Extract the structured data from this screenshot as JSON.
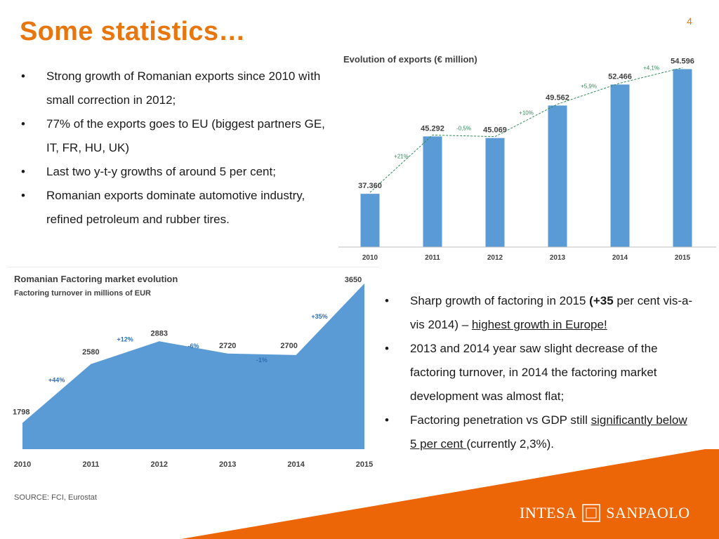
{
  "page_number": "4",
  "title": "Some statistics…",
  "left_bullets": [
    {
      "symbol": "•",
      "text": "Strong growth of Romanian exports since 2010 wìth small correction in 2012;"
    },
    {
      "symbol": "•",
      "text": "77% of the exports goes to EU (biggest partners GE, IT, FR, HU, UK)"
    },
    {
      "symbol": "•",
      "text": "Last two y-t-y growths of around 5 per cent;"
    },
    {
      "symbol": "•",
      "text": "Romanian exports dominate automotive industry, refined petroleum and rubber tires."
    }
  ],
  "right_bullets": {
    "b1": {
      "symbol": "•",
      "pre": "Sharp growth of factoring in 2015 ",
      "bold": "(+35",
      "mid": " per cent vis-a-vis 2014) – ",
      "underlined": "highest growth in Europe!"
    },
    "b2": {
      "symbol": "•",
      "text": "2013 and 2014 year saw slight decrease of the factoring turnover, in 2014 the factoring market development was almost flat;"
    },
    "b3": {
      "symbol": "•",
      "pre": "Factoring penetration vs GDP still ",
      "underlined": "significantly below 5 per cent ",
      "post": "(currently 2,3%)."
    }
  },
  "source": "SOURCE: FCI, Eurostat",
  "logo": {
    "left": "INTESA",
    "right": "SANPAOLO"
  },
  "colors": {
    "accent": "#e8760f",
    "bar": "#5b9bd5",
    "trend": "#2e8b57",
    "area": "#5b9bd5"
  },
  "chart_data": [
    {
      "type": "bar",
      "title": "Evolution of exports (€ million)",
      "categories": [
        "2010",
        "2011",
        "2012",
        "2013",
        "2014",
        "2015"
      ],
      "values": [
        37360,
        45292,
        45069,
        49562,
        52466,
        54596
      ],
      "value_labels": [
        "37.360",
        "45.292",
        "45.069",
        "49.562",
        "52.466",
        "54.596"
      ],
      "growth_labels": [
        "+21%",
        "-0,5%",
        "+10%",
        "+5,9%",
        "+4,1%"
      ],
      "ylim": [
        30000,
        56000
      ],
      "trend_line": true,
      "grid": false
    },
    {
      "type": "area",
      "title": "Romanian Factoring market evolution",
      "subtitle": "Factoring turnover in millions of EUR",
      "categories": [
        "2010",
        "2011",
        "2012",
        "2013",
        "2014",
        "2015"
      ],
      "values": [
        1798,
        2580,
        2883,
        2720,
        2700,
        3650
      ],
      "value_labels": [
        "1798",
        "2580",
        "2883",
        "2720",
        "2700",
        "3650"
      ],
      "growth_labels": [
        "+44%",
        "+12%",
        "-6%",
        "-1%",
        "+35%"
      ],
      "ylim": [
        1450,
        3650
      ],
      "grid": false
    }
  ]
}
